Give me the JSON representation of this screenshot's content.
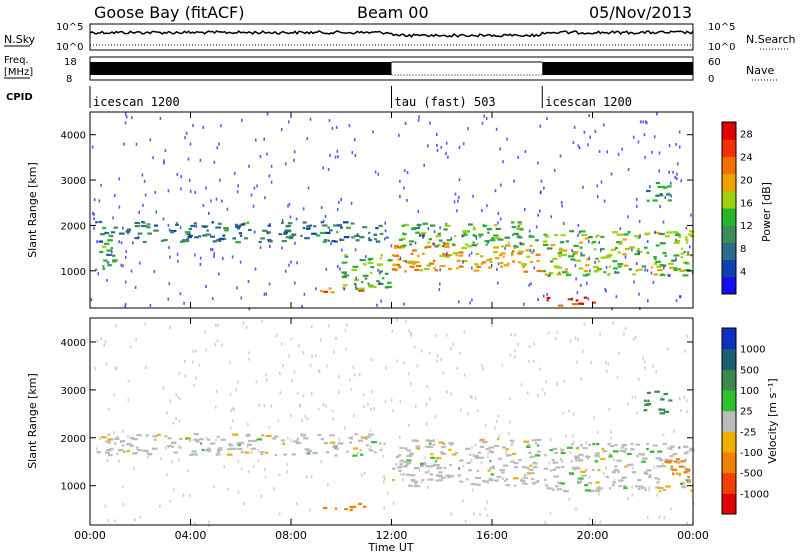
{
  "header": {
    "station": "Goose Bay (fitACF)",
    "beam": "Beam 00",
    "date": "05/Nov/2013"
  },
  "noise_panel": {
    "left_label": "N.Sky",
    "right_label": "N.Search",
    "tick_top": "10^5",
    "tick_bottom": "10^0"
  },
  "freq_panel": {
    "left_label_1": "Freq.",
    "left_label_2": "[MHz]",
    "left_tick_top": "18",
    "left_tick_bottom": "8",
    "right_label": "Nave",
    "right_tick_top": "60",
    "right_tick_bottom": "0"
  },
  "cpid_panel": {
    "label": "CPID",
    "segments": [
      {
        "name": "icescan 1200",
        "start_hour": 0,
        "end_hour": 12
      },
      {
        "name": "tau (fast) 503",
        "start_hour": 12,
        "end_hour": 18
      },
      {
        "name": "icescan 1200",
        "start_hour": 18,
        "end_hour": 24
      }
    ]
  },
  "axes": {
    "ylabel": "Slant Range [km]",
    "xlabel": "Time UT",
    "y_ticks": [
      "1000",
      "2000",
      "3000",
      "4000"
    ],
    "x_ticks": [
      "00:00",
      "04:00",
      "08:00",
      "12:00",
      "16:00",
      "20:00",
      "00:00"
    ]
  },
  "power_colorbar": {
    "label": "Power [dB]",
    "ticks": [
      "4",
      "8",
      "12",
      "16",
      "20",
      "24",
      "28"
    ],
    "colors": [
      "#1010f0",
      "#1040b0",
      "#2e6a8c",
      "#3c8c5c",
      "#28b428",
      "#a0d010",
      "#f0a000",
      "#f07000",
      "#f03000",
      "#e00000"
    ]
  },
  "velocity_colorbar": {
    "label": "Velocity [m s⁻¹]",
    "ticks": [
      "1000",
      "500",
      "100",
      "25",
      "-25",
      "-100",
      "-500",
      "-1000"
    ],
    "colors": [
      "#1030c0",
      "#1a6070",
      "#3a8a4c",
      "#30c030",
      "#bbbbbb",
      "#f0b000",
      "#f08000",
      "#f04000",
      "#e00000"
    ]
  },
  "chart_data": {
    "type": "heatmap",
    "x_range_hours": [
      0,
      24
    ],
    "y_range_km": [
      180,
      4500
    ],
    "power_range_db": [
      0,
      30
    ],
    "velocity_range_ms": [
      -1000,
      1000
    ],
    "power_regions": [
      {
        "t0": 0.2,
        "t1": 11.8,
        "r0": 1650,
        "r1": 2100,
        "level": 9
      },
      {
        "t0": 0.2,
        "t1": 1.0,
        "r0": 1000,
        "r1": 1700,
        "level": 12
      },
      {
        "t0": 9.0,
        "t1": 11.0,
        "r0": 500,
        "r1": 650,
        "level": 22
      },
      {
        "t0": 10.0,
        "t1": 12.0,
        "r0": 600,
        "r1": 1400,
        "level": 14
      },
      {
        "t0": 12.0,
        "t1": 17.8,
        "r0": 1000,
        "r1": 1650,
        "level": 20
      },
      {
        "t0": 12.2,
        "t1": 17.8,
        "r0": 1550,
        "r1": 2100,
        "level": 13
      },
      {
        "t0": 18.0,
        "t1": 20.0,
        "r0": 250,
        "r1": 450,
        "level": 25
      },
      {
        "t0": 18.0,
        "t1": 23.9,
        "r0": 900,
        "r1": 1900,
        "level": 15
      },
      {
        "t0": 22.0,
        "t1": 23.0,
        "r0": 2500,
        "r1": 3000,
        "level": 11
      }
    ],
    "velocity_regions": [
      {
        "t0": 0.2,
        "t1": 11.8,
        "r0": 1650,
        "r1": 2100,
        "level": 0
      },
      {
        "t0": 9.0,
        "t1": 11.0,
        "r0": 500,
        "r1": 650,
        "level": -250
      },
      {
        "t0": 12.0,
        "t1": 17.8,
        "r0": 1000,
        "r1": 2000,
        "level": 0
      },
      {
        "t0": 18.0,
        "t1": 23.9,
        "r0": 900,
        "r1": 1900,
        "level": 0
      },
      {
        "t0": 22.0,
        "t1": 23.0,
        "r0": 2500,
        "r1": 3000,
        "level": 200
      },
      {
        "t0": 22.8,
        "t1": 23.8,
        "r0": 1100,
        "r1": 1600,
        "level": -300
      }
    ]
  }
}
